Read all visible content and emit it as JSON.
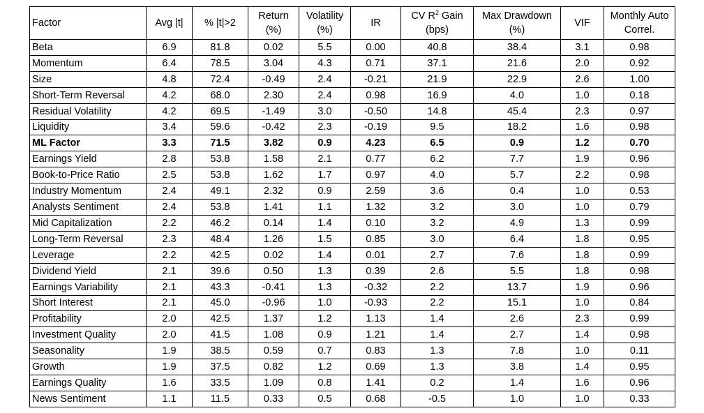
{
  "chart_data": {
    "type": "table",
    "columns": [
      "Factor",
      "Avg |t|",
      "% |t|>2",
      "Return (%)",
      "Volatility (%)",
      "IR",
      "CV R2 Gain (bps)",
      "Max Drawdown (%)",
      "VIF",
      "Monthly Auto Correl."
    ],
    "header_parts": {
      "factor": "Factor",
      "avg_t": "Avg |t|",
      "pct_t": "% |t|>2",
      "return_1": "Return",
      "return_2": "(%)",
      "vol_1": "Volatility",
      "vol_2": "(%)",
      "ir": "IR",
      "cv_1a": "CV R",
      "cv_sup": "2",
      "cv_1b": " Gain",
      "cv_2": "(bps)",
      "mdd_1": "Max Drawdown",
      "mdd_2": "(%)",
      "vif": "VIF",
      "ac_1": "Monthly Auto",
      "ac_2": "Correl."
    },
    "bold_row": "ML Factor",
    "rows": [
      [
        "Beta",
        "6.9",
        "81.8",
        "0.02",
        "5.5",
        "0.00",
        "40.8",
        "38.4",
        "3.1",
        "0.98"
      ],
      [
        "Momentum",
        "6.4",
        "78.5",
        "3.04",
        "4.3",
        "0.71",
        "37.1",
        "21.6",
        "2.0",
        "0.92"
      ],
      [
        "Size",
        "4.8",
        "72.4",
        "-0.49",
        "2.4",
        "-0.21",
        "21.9",
        "22.9",
        "2.6",
        "1.00"
      ],
      [
        "Short-Term Reversal",
        "4.2",
        "68.0",
        "2.30",
        "2.4",
        "0.98",
        "16.9",
        "4.0",
        "1.0",
        "0.18"
      ],
      [
        "Residual Volatility",
        "4.2",
        "69.5",
        "-1.49",
        "3.0",
        "-0.50",
        "14.8",
        "45.4",
        "2.3",
        "0.97"
      ],
      [
        "Liquidity",
        "3.4",
        "59.6",
        "-0.42",
        "2.3",
        "-0.19",
        "9.5",
        "18.2",
        "1.6",
        "0.98"
      ],
      [
        "ML Factor",
        "3.3",
        "71.5",
        "3.82",
        "0.9",
        "4.23",
        "6.5",
        "0.9",
        "1.2",
        "0.70"
      ],
      [
        "Earnings Yield",
        "2.8",
        "53.8",
        "1.58",
        "2.1",
        "0.77",
        "6.2",
        "7.7",
        "1.9",
        "0.96"
      ],
      [
        "Book-to-Price Ratio",
        "2.5",
        "53.8",
        "1.62",
        "1.7",
        "0.97",
        "4.0",
        "5.7",
        "2.2",
        "0.98"
      ],
      [
        "Industry Momentum",
        "2.4",
        "49.1",
        "2.32",
        "0.9",
        "2.59",
        "3.6",
        "0.4",
        "1.0",
        "0.53"
      ],
      [
        "Analysts Sentiment",
        "2.4",
        "53.8",
        "1.41",
        "1.1",
        "1.32",
        "3.2",
        "3.0",
        "1.0",
        "0.79"
      ],
      [
        "Mid Capitalization",
        "2.2",
        "46.2",
        "0.14",
        "1.4",
        "0.10",
        "3.2",
        "4.9",
        "1.3",
        "0.99"
      ],
      [
        "Long-Term Reversal",
        "2.3",
        "48.4",
        "1.26",
        "1.5",
        "0.85",
        "3.0",
        "6.4",
        "1.8",
        "0.95"
      ],
      [
        "Leverage",
        "2.2",
        "42.5",
        "0.02",
        "1.4",
        "0.01",
        "2.7",
        "7.6",
        "1.8",
        "0.99"
      ],
      [
        "Dividend Yield",
        "2.1",
        "39.6",
        "0.50",
        "1.3",
        "0.39",
        "2.6",
        "5.5",
        "1.8",
        "0.98"
      ],
      [
        "Earnings Variability",
        "2.1",
        "43.3",
        "-0.41",
        "1.3",
        "-0.32",
        "2.2",
        "13.7",
        "1.9",
        "0.96"
      ],
      [
        "Short Interest",
        "2.1",
        "45.0",
        "-0.96",
        "1.0",
        "-0.93",
        "2.2",
        "15.1",
        "1.0",
        "0.84"
      ],
      [
        "Profitability",
        "2.0",
        "42.5",
        "1.37",
        "1.2",
        "1.13",
        "1.4",
        "2.6",
        "2.3",
        "0.99"
      ],
      [
        "Investment Quality",
        "2.0",
        "41.5",
        "1.08",
        "0.9",
        "1.21",
        "1.4",
        "2.7",
        "1.4",
        "0.98"
      ],
      [
        "Seasonality",
        "1.9",
        "38.5",
        "0.59",
        "0.7",
        "0.83",
        "1.3",
        "7.8",
        "1.0",
        "0.11"
      ],
      [
        "Growth",
        "1.9",
        "37.5",
        "0.82",
        "1.2",
        "0.69",
        "1.3",
        "3.8",
        "1.4",
        "0.95"
      ],
      [
        "Earnings Quality",
        "1.6",
        "33.5",
        "1.09",
        "0.8",
        "1.41",
        "0.2",
        "1.4",
        "1.6",
        "0.96"
      ],
      [
        "News Sentiment",
        "1.1",
        "11.5",
        "0.33",
        "0.5",
        "0.68",
        "-0.5",
        "1.0",
        "1.0",
        "0.33"
      ]
    ]
  }
}
